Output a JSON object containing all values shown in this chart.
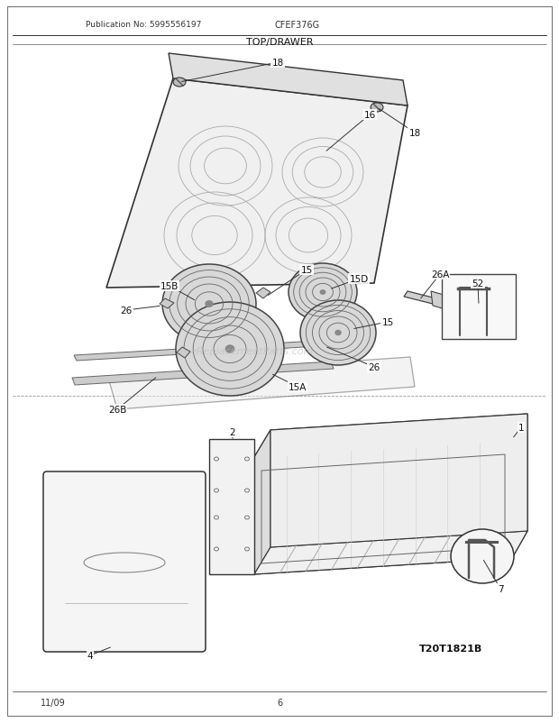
{
  "title": "TOP/DRAWER",
  "pub_no": "Publication No: 5995556197",
  "model": "CFEF376G",
  "date": "11/09",
  "page": "6",
  "diagram_id": "T20T1821B",
  "bg_color": "#ffffff",
  "figsize": [
    6.2,
    8.03
  ],
  "dpi": 100
}
